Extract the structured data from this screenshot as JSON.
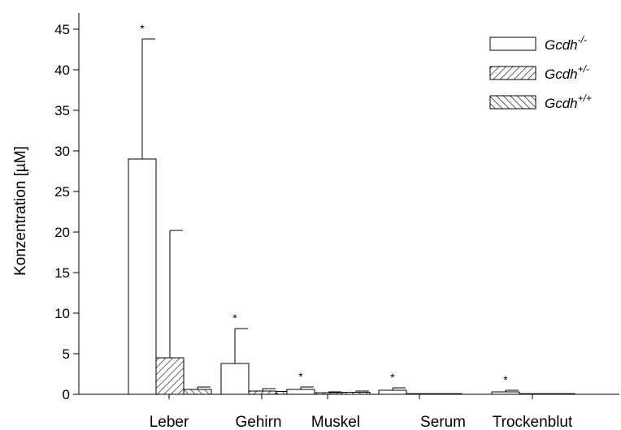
{
  "chart_data": {
    "type": "bar",
    "ylabel": "Konzentration [µM]",
    "xlabel": "",
    "ylim": [
      0,
      47
    ],
    "yticks": [
      0,
      5,
      10,
      15,
      20,
      25,
      30,
      35,
      40,
      45
    ],
    "categories": [
      "Leber",
      "Gehirn",
      "Muskel",
      "Serum",
      "Trockenblut"
    ],
    "series": [
      {
        "name": "Gcdh-/-",
        "legend_base": "Gcdh",
        "legend_sup": "-/-",
        "pattern": "open",
        "values": [
          29.0,
          3.8,
          0.6,
          0.5,
          0.3
        ],
        "errors": [
          14.8,
          4.3,
          0.3,
          0.3,
          0.2
        ]
      },
      {
        "name": "Gcdh+/-",
        "legend_base": "Gcdh",
        "legend_sup": "+/-",
        "pattern": "hatch-forward",
        "values": [
          4.5,
          0.4,
          0.2,
          0.05,
          0.05
        ],
        "errors": [
          15.7,
          0.3,
          0.1,
          0.0,
          0.0
        ]
      },
      {
        "name": "Gcdh+/+",
        "legend_base": "Gcdh",
        "legend_sup": "+/+",
        "pattern": "hatch-back",
        "values": [
          0.6,
          0.35,
          0.25,
          0.05,
          0.05
        ],
        "errors": [
          0.3,
          0.2,
          0.15,
          0.0,
          0.0
        ]
      }
    ],
    "significance": [
      "*",
      "*",
      "*",
      "*",
      "*"
    ],
    "significance_series": "Gcdh-/-",
    "legend_position": "top-right",
    "grid": false
  }
}
